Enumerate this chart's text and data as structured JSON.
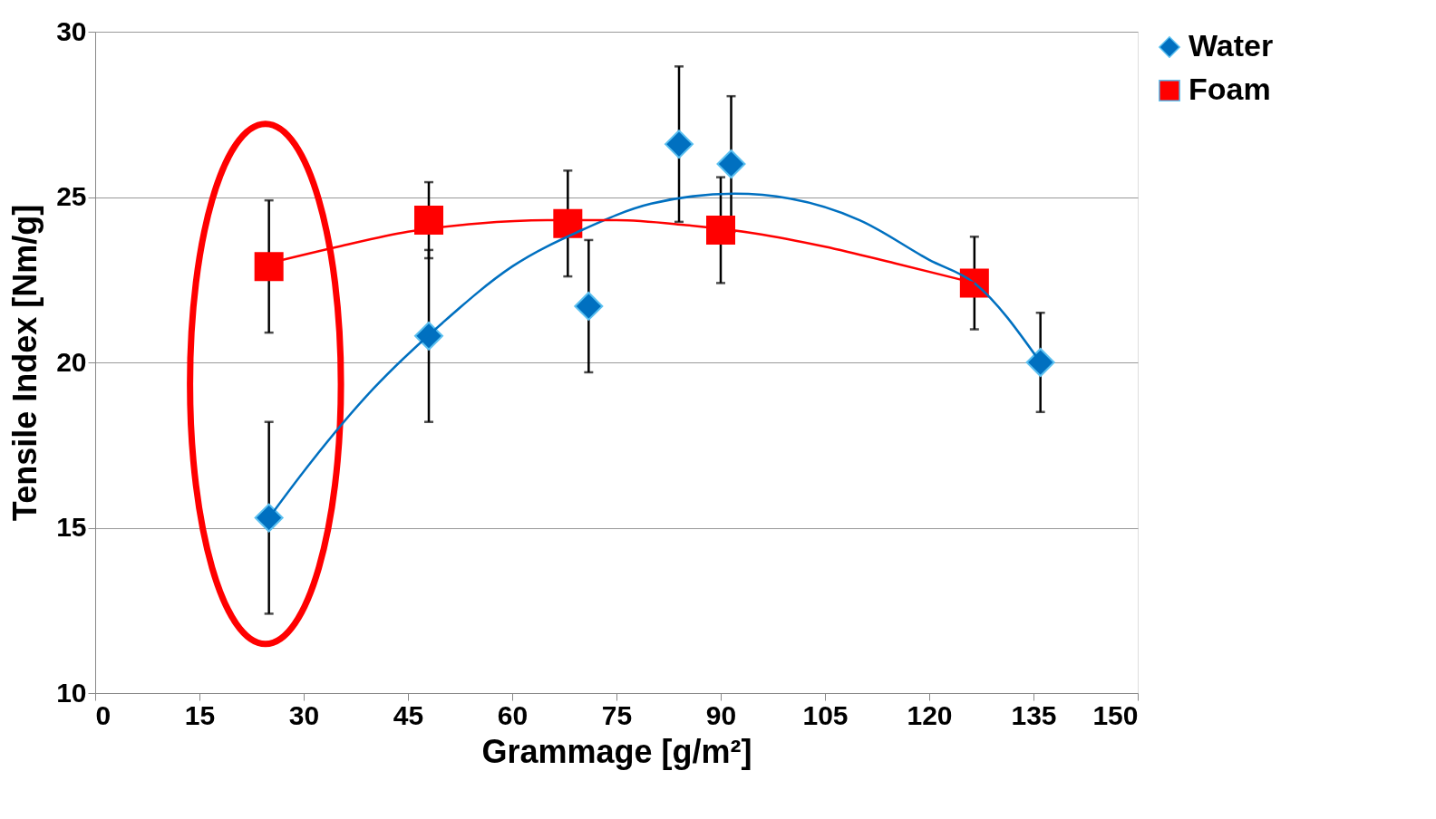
{
  "chart_data": {
    "type": "scatter",
    "xlabel": "Grammage  [g/m²]",
    "ylabel": "Tensile Index [Nm/g]",
    "xlim": [
      0,
      150
    ],
    "xticks": [
      0,
      15,
      30,
      45,
      60,
      75,
      90,
      105,
      120,
      135,
      150
    ],
    "ylim": [
      10,
      30
    ],
    "yticks": [
      10,
      15,
      20,
      25,
      30
    ],
    "grid": "y",
    "legend": "right",
    "series": [
      {
        "name": "Water",
        "color": "#0070c0",
        "marker": "diamond",
        "x": [
          25,
          48,
          71,
          84,
          91.5,
          136
        ],
        "values": [
          15.3,
          20.8,
          21.7,
          26.6,
          26.0,
          20.0
        ],
        "errors": [
          2.9,
          2.6,
          2.0,
          2.35,
          2.05,
          1.5
        ]
      },
      {
        "name": "Foam",
        "color": "#ff0000",
        "marker": "square",
        "x": [
          25,
          48,
          68,
          90,
          126.5
        ],
        "values": [
          22.9,
          24.3,
          24.2,
          24.0,
          22.4
        ],
        "errors": [
          2.0,
          1.15,
          1.6,
          1.6,
          1.4
        ]
      },
      {
        "color": "#0070c0",
        "type": "line",
        "x": [
          25,
          30,
          40,
          50,
          60,
          70,
          80,
          92,
          100,
          110,
          120,
          126.5,
          136
        ],
        "values": [
          15.3,
          16.7,
          19.2,
          21.2,
          22.9,
          24.0,
          24.8,
          25.1,
          24.95,
          24.3,
          23.1,
          22.4,
          20.0
        ]
      },
      {
        "color": "#ff0000",
        "type": "line",
        "x": [
          25,
          35,
          45,
          55,
          65,
          75,
          85,
          95,
          105,
          115,
          126.5
        ],
        "values": [
          23.0,
          23.5,
          23.95,
          24.2,
          24.3,
          24.3,
          24.15,
          23.9,
          23.5,
          23.0,
          22.4
        ]
      }
    ]
  }
}
